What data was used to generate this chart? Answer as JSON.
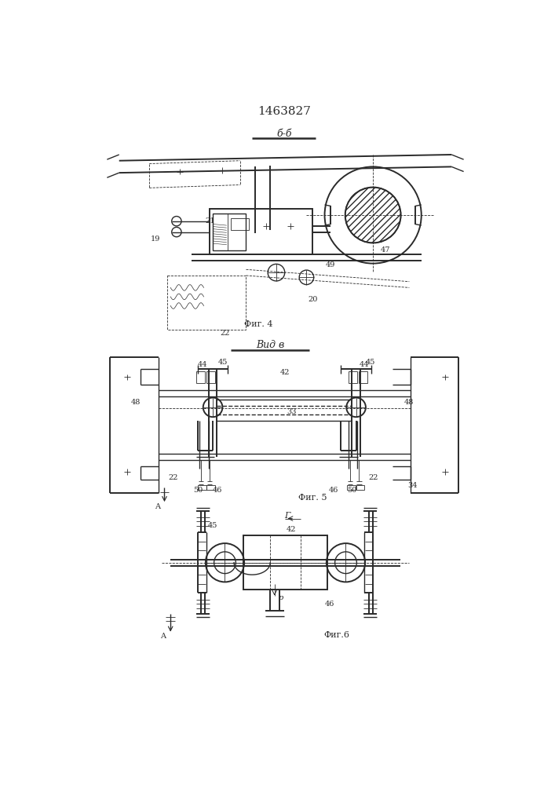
{
  "title": "1463827",
  "fig4_label": "Фиг. 4",
  "fig4_section": "б-б",
  "fig5_label": "Фиг. 5",
  "fig5_section": "Вид в",
  "fig6_label": "Фиг.6",
  "fig6_section": "р",
  "bg_color": "#ffffff",
  "line_color": "#2a2a2a"
}
